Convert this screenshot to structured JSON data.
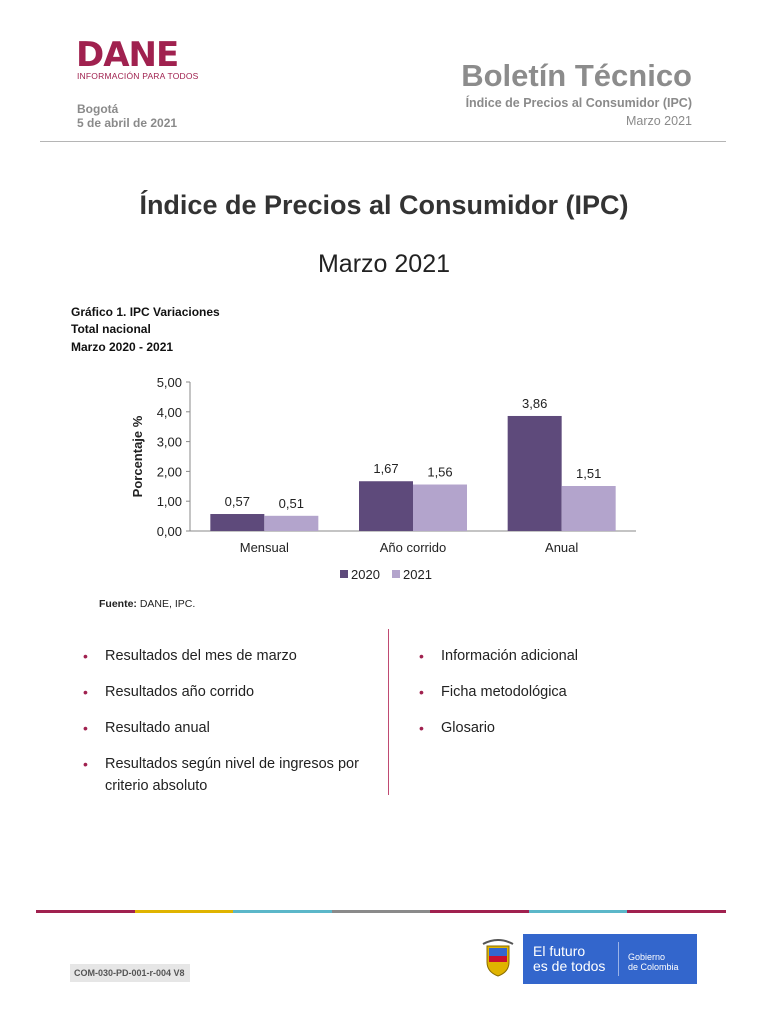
{
  "header": {
    "logo": "DANE",
    "logo_tagline": "INFORMACIÓN PARA TODOS",
    "city": "Bogotá",
    "date": "5 de abril de 2021",
    "bulletin_title": "Boletín Técnico",
    "bulletin_subtitle": "Índice de Precios al Consumidor (IPC)",
    "bulletin_period": "Marzo 2021"
  },
  "main": {
    "title": "Índice de Precios al Consumidor (IPC)",
    "subtitle": "Marzo 2021"
  },
  "figure": {
    "caption_line1": "Gráfico 1. IPC Variaciones",
    "caption_line2": "Total nacional",
    "caption_line3": "Marzo 2020 - 2021",
    "source_label": "Fuente:",
    "source_text": "DANE, IPC."
  },
  "chart_data": {
    "type": "bar",
    "categories": [
      "Mensual",
      "Año corrido",
      "Anual"
    ],
    "series": [
      {
        "name": "2020",
        "values": [
          0.57,
          1.67,
          3.86
        ],
        "labels": [
          "0,57",
          "1,67",
          "3,86"
        ],
        "color": "#5e4a7b"
      },
      {
        "name": "2021",
        "values": [
          0.51,
          1.56,
          1.51
        ],
        "labels": [
          "0,51",
          "1,56",
          "1,51"
        ],
        "color": "#b3a4cc"
      }
    ],
    "ylabel": "Porcentaje %",
    "xlabel": "",
    "ylim": [
      0,
      5
    ],
    "yticks": [
      "0,00",
      "1,00",
      "2,00",
      "3,00",
      "4,00",
      "5,00"
    ],
    "grid": false,
    "legend_position": "bottom"
  },
  "sections": {
    "left": [
      "Resultados del mes de marzo",
      "Resultados año corrido",
      "Resultado anual",
      "Resultados según nivel de ingresos por criterio absoluto"
    ],
    "right": [
      "Información adicional",
      "Ficha metodológica",
      "Glosario"
    ]
  },
  "footer": {
    "code": "COM-030-PD-001-r-004 V8",
    "gov_line1": "El futuro",
    "gov_line2": "es de todos",
    "gov_right1": "Gobierno",
    "gov_right2": "de Colombia",
    "bar_colors": [
      "#a0214f",
      "#e0b400",
      "#5bb7c9",
      "#8a8a8a",
      "#a0214f",
      "#5bb7c9",
      "#a0214f"
    ]
  }
}
